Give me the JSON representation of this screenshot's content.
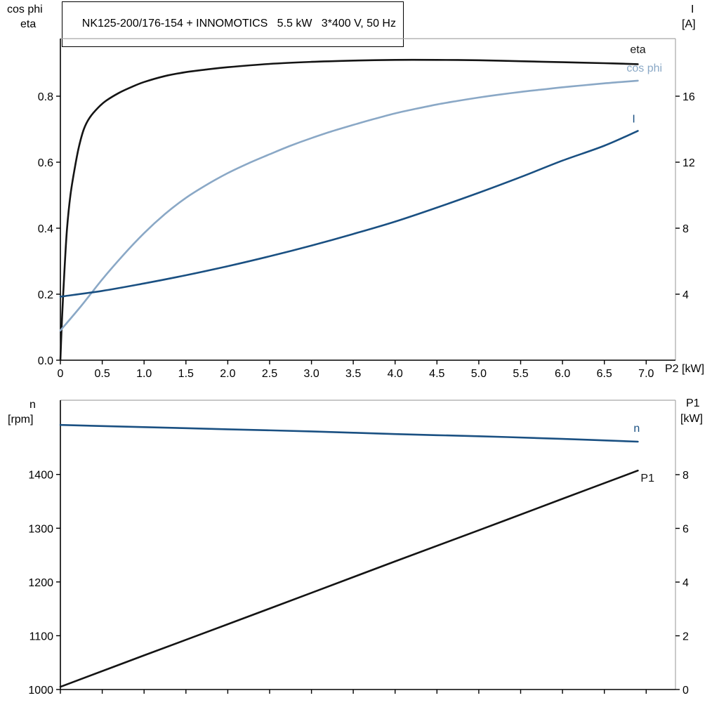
{
  "title": "NK125-200/176-154 + INNOMOTICS   5.5 kW   3*400 V, 50 Hz",
  "axis_corner_labels": {
    "top_left_line1": "cos phi",
    "top_left_line2": "eta",
    "top_right_line1": "I",
    "top_right_line2": "[A]",
    "x_axis_label": "P2 [kW]",
    "bottom_left_line1": "n",
    "bottom_left_line2": "[rpm]",
    "bottom_right_line1": "P1",
    "bottom_right_line2": "[kW]"
  },
  "colors": {
    "eta": "#141414",
    "cos_phi": "#8aa8c6",
    "current": "#1a5082",
    "speed": "#1a5082",
    "p1": "#141414",
    "axis": "#000000",
    "frame": "#a8a8a8"
  },
  "chart_data": [
    {
      "id": "top",
      "type": "line",
      "title": "NK125-200/176-154 + INNOMOTICS   5.5 kW   3*400 V, 50 Hz",
      "x_axis": {
        "label": "P2 [kW]",
        "min": 0,
        "max": 7.35,
        "tick_values": [
          0,
          0.5,
          1,
          1.5,
          2,
          2.5,
          3,
          3.5,
          4,
          4.5,
          5,
          5.5,
          6,
          6.5,
          7
        ],
        "tick_labels": [
          "0",
          "0.5",
          "1.0",
          "1.5",
          "2.0",
          "2.5",
          "3.0",
          "3.5",
          "4.0",
          "4.5",
          "5.0",
          "5.5",
          "6.0",
          "6.5",
          "7.0"
        ]
      },
      "y_left": {
        "label": "cos phi / eta",
        "min": 0,
        "max": 0.9745,
        "tick_values": [
          0,
          0.2,
          0.4,
          0.6,
          0.8
        ],
        "tick_labels": [
          "0.0",
          "0.2",
          "0.4",
          "0.6",
          "0.8"
        ]
      },
      "y_right": {
        "label": "I [A]",
        "min": 0,
        "max": 19.49,
        "tick_values": [
          4,
          8,
          12,
          16
        ],
        "tick_labels": [
          "4",
          "8",
          "12",
          "16"
        ]
      },
      "grid": false,
      "series": [
        {
          "name": "eta",
          "label": "eta",
          "axis": "left",
          "color": "#141414",
          "points": [
            [
              0,
              0
            ],
            [
              0.02,
              0.13
            ],
            [
              0.05,
              0.28
            ],
            [
              0.08,
              0.4
            ],
            [
              0.12,
              0.5
            ],
            [
              0.17,
              0.58
            ],
            [
              0.22,
              0.645
            ],
            [
              0.28,
              0.7
            ],
            [
              0.35,
              0.735
            ],
            [
              0.45,
              0.765
            ],
            [
              0.55,
              0.787
            ],
            [
              0.7,
              0.81
            ],
            [
              0.85,
              0.828
            ],
            [
              1.0,
              0.843
            ],
            [
              1.25,
              0.861
            ],
            [
              1.5,
              0.873
            ],
            [
              1.75,
              0.881
            ],
            [
              2.0,
              0.888
            ],
            [
              2.5,
              0.898
            ],
            [
              3.0,
              0.904
            ],
            [
              3.5,
              0.908
            ],
            [
              4.0,
              0.91
            ],
            [
              4.5,
              0.91
            ],
            [
              5.0,
              0.909
            ],
            [
              5.5,
              0.906
            ],
            [
              6.0,
              0.903
            ],
            [
              6.5,
              0.9
            ],
            [
              6.9,
              0.897
            ]
          ]
        },
        {
          "name": "cos phi",
          "label": "cos phi",
          "axis": "left",
          "color": "#8aa8c6",
          "points": [
            [
              0,
              0.09
            ],
            [
              0.25,
              0.165
            ],
            [
              0.5,
              0.245
            ],
            [
              0.75,
              0.318
            ],
            [
              1.0,
              0.385
            ],
            [
              1.25,
              0.443
            ],
            [
              1.5,
              0.492
            ],
            [
              1.75,
              0.532
            ],
            [
              2.0,
              0.567
            ],
            [
              2.25,
              0.597
            ],
            [
              2.5,
              0.624
            ],
            [
              2.75,
              0.65
            ],
            [
              3.0,
              0.673
            ],
            [
              3.25,
              0.694
            ],
            [
              3.5,
              0.713
            ],
            [
              3.75,
              0.731
            ],
            [
              4.0,
              0.748
            ],
            [
              4.25,
              0.762
            ],
            [
              4.5,
              0.775
            ],
            [
              4.75,
              0.786
            ],
            [
              5.0,
              0.796
            ],
            [
              5.25,
              0.805
            ],
            [
              5.5,
              0.813
            ],
            [
              5.75,
              0.82
            ],
            [
              6.0,
              0.827
            ],
            [
              6.25,
              0.833
            ],
            [
              6.5,
              0.839
            ],
            [
              6.75,
              0.844
            ],
            [
              6.9,
              0.847
            ]
          ]
        },
        {
          "name": "I",
          "label": "I",
          "axis": "right",
          "color": "#1a5082",
          "points": [
            [
              0,
              3.85
            ],
            [
              0.5,
              4.2
            ],
            [
              1.0,
              4.65
            ],
            [
              1.5,
              5.15
            ],
            [
              2.0,
              5.7
            ],
            [
              2.5,
              6.3
            ],
            [
              3.0,
              6.95
            ],
            [
              3.5,
              7.65
            ],
            [
              4.0,
              8.4
            ],
            [
              4.5,
              9.25
            ],
            [
              5.0,
              10.15
            ],
            [
              5.5,
              11.1
            ],
            [
              6.0,
              12.1
            ],
            [
              6.5,
              13.0
            ],
            [
              6.9,
              13.9
            ]
          ]
        }
      ]
    },
    {
      "id": "bottom",
      "type": "line",
      "x_axis": {
        "label": "",
        "min": 0,
        "max": 7.35,
        "tick_values": [
          0,
          0.5,
          1,
          1.5,
          2,
          2.5,
          3,
          3.5,
          4,
          4.5,
          5,
          5.5,
          6,
          6.5,
          7
        ],
        "tick_labels": []
      },
      "y_left": {
        "label": "n [rpm]",
        "min": 1000,
        "max": 1538,
        "tick_values": [
          1000,
          1100,
          1200,
          1300,
          1400
        ],
        "tick_labels": [
          "1000",
          "1100",
          "1200",
          "1300",
          "1400"
        ]
      },
      "y_right": {
        "label": "P1 [kW]",
        "min": 0,
        "max": 10.77,
        "tick_values": [
          0,
          2,
          4,
          6,
          8
        ],
        "tick_labels": [
          "0",
          "2",
          "4",
          "6",
          "8"
        ]
      },
      "grid": false,
      "series": [
        {
          "name": "n",
          "label": "n",
          "axis": "left",
          "color": "#1a5082",
          "points": [
            [
              0,
              1492
            ],
            [
              1,
              1488
            ],
            [
              2,
              1484
            ],
            [
              3,
              1480
            ],
            [
              4,
              1475
            ],
            [
              5,
              1471
            ],
            [
              6,
              1466
            ],
            [
              6.9,
              1461
            ]
          ]
        },
        {
          "name": "P1",
          "label": "P1",
          "axis": "right",
          "color": "#141414",
          "points": [
            [
              0,
              0.1
            ],
            [
              1,
              1.27
            ],
            [
              2,
              2.43
            ],
            [
              3,
              3.6
            ],
            [
              4,
              4.77
            ],
            [
              5,
              5.93
            ],
            [
              6,
              7.1
            ],
            [
              6.9,
              8.15
            ]
          ]
        }
      ]
    }
  ]
}
